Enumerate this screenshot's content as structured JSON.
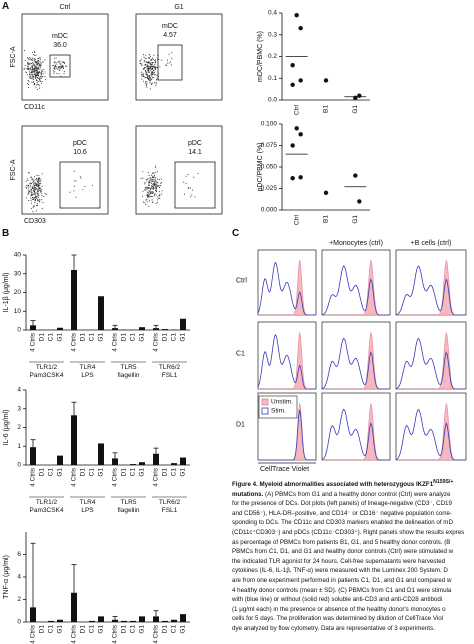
{
  "panel_labels": [
    "A",
    "B",
    "C"
  ],
  "flow": {
    "columns": [
      "Ctrl",
      "G1"
    ],
    "y_label": "FSC-A",
    "rows": [
      {
        "x_label": "CD11c",
        "cells": [
          {
            "population": "mDC",
            "percent": "36.0"
          },
          {
            "population": "mDC",
            "percent": "4.57"
          }
        ]
      },
      {
        "x_label": "CD303",
        "cells": [
          {
            "population": "pDC",
            "percent": "10.6"
          },
          {
            "population": "pDC",
            "percent": "14.1"
          }
        ]
      }
    ]
  },
  "chart_data": [
    {
      "type": "strip",
      "y_label": "mDC/PBMC (%)",
      "categories": [
        "Ctrl",
        "B1",
        "G1"
      ],
      "points": [
        [
          0.39,
          0.33,
          0.16,
          0.09,
          0.07
        ],
        [
          0.09
        ],
        [
          0.01,
          0.02
        ]
      ],
      "means": [
        0.2,
        null,
        0.015
      ],
      "ylim": [
        0,
        0.4
      ],
      "yticks": [
        {
          "value": 0,
          "label": "0.0"
        },
        0.1,
        0.2,
        0.3,
        0.4
      ]
    },
    {
      "type": "strip",
      "y_label": "pDC/PBMC (%)",
      "categories": [
        "Ctrl",
        "B1",
        "G1"
      ],
      "points": [
        [
          0.095,
          0.088,
          0.075,
          0.038,
          0.037
        ],
        [
          0.02
        ],
        [
          0.04,
          0.01
        ]
      ],
      "means": [
        0.065,
        null,
        0.027
      ],
      "ylim": [
        0,
        0.1
      ],
      "yticks": [
        {
          "value": 0,
          "label": "0.000"
        },
        0.025,
        {
          "value": 0.05,
          "label": "0.050"
        },
        0.075,
        {
          "value": 0.1,
          "label": "0.100"
        }
      ]
    },
    {
      "type": "bar",
      "y_label": "IL-1β (μg/ml)",
      "categories": [
        "4 Ctrls",
        "D1",
        "C1",
        "G1"
      ],
      "groups": [
        {
          "name": "TLR1/2",
          "agonist": "Pam3CSK4",
          "values": [
            2.5,
            0.1,
            0.1,
            1.2
          ],
          "error": 2.5
        },
        {
          "name": "TLR4",
          "agonist": "LPS",
          "values": [
            32,
            0,
            0,
            18
          ],
          "error": 8
        },
        {
          "name": "TLR5",
          "agonist": "flagellin",
          "values": [
            1,
            0.2,
            0.1,
            1.5
          ],
          "error": 1.5
        },
        {
          "name": "TLR6/2",
          "agonist": "FSL1",
          "values": [
            1,
            0.5,
            0.2,
            6
          ],
          "error": 1.5
        }
      ],
      "ylim": [
        0,
        40
      ],
      "yticks": [
        0,
        10,
        20,
        30,
        40
      ]
    },
    {
      "type": "bar",
      "y_label": "IL-6 (μg/ml)",
      "categories": [
        "4 Ctrls",
        "D1",
        "C1",
        "G1"
      ],
      "groups": [
        {
          "name": "TLR1/2",
          "agonist": "Pam3CSK4",
          "values": [
            0.95,
            0,
            0,
            0.5
          ],
          "error": 0.4
        },
        {
          "name": "TLR4",
          "agonist": "LPS",
          "values": [
            2.65,
            0,
            0,
            1.15
          ],
          "error": 0.7
        },
        {
          "name": "TLR5",
          "agonist": "flagellin",
          "values": [
            0.35,
            0,
            0.05,
            0.15
          ],
          "error": 0.3
        },
        {
          "name": "TLR6/2",
          "agonist": "FSL1",
          "values": [
            0.6,
            0,
            0.1,
            0.4
          ],
          "error": 0.3
        }
      ],
      "ylim": [
        0,
        4
      ],
      "yticks": [
        0,
        1,
        2,
        3,
        4
      ]
    },
    {
      "type": "bar",
      "y_label": "TNF-α (μg/ml)",
      "categories": [
        "4 Ctrls",
        "D1",
        "C1",
        "G1"
      ],
      "groups": [
        {
          "values": [
            1.3,
            0,
            0.1,
            0.2
          ],
          "error": 5.7
        },
        {
          "values": [
            2.6,
            0,
            0.1,
            0.5
          ],
          "error": 2.5
        },
        {
          "values": [
            0.2,
            0.1,
            0.1,
            0.5
          ],
          "error": 0.3
        },
        {
          "values": [
            0.5,
            0.1,
            0.2,
            0.7
          ],
          "error": 0.5
        }
      ],
      "ylim": [
        0,
        8
      ],
      "yticks": [
        0,
        2,
        4,
        6
      ]
    }
  ],
  "histograms": {
    "columns": [
      "+Monocytes (ctrl)",
      "+B cells (ctrl)"
    ],
    "rows": [
      "Ctrl",
      "C1",
      "D1"
    ],
    "legend": [
      "Unstim.",
      "Stim."
    ],
    "x_label": "CellTrace Violet"
  },
  "caption": {
    "title": "Figure 4. Myeloid abnormalities associated with heterozygous IKZF1",
    "superscript": "N159S/+",
    "title_end": "mutations.",
    "lines": [
      "(A) PBMCs from G1 and a healthy donor control (Ctrl) were analyze",
      "for the presence of DCs. Dot plots (left panels) of lineage-negative (CD3⁻, CD19",
      "and CD56⁻), HLA-DR–positive, and CD14⁻ or CD16⁻ negative population corre-",
      "sponding to DCs. The CD11c and CD303 markers enabled the delineation of mD",
      "(CD11c⁺CD303⁻) and pDCs (CD11c⁻CD303⁺). Right panels show the results expres",
      "as percentage of PBMCs from patients B1, G1, and 5 healthy donor controls. (B",
      "PBMCs from C1, D1, and G1 and healthy donor controls (Ctrl) were stimulated w",
      "the indicated TLR agonist for 24 hours. Cell-free supernatants were harvested",
      "cytokines (IL-6, IL-1β, TNF-α) were measured with the Luminex 200 System. D",
      "are from one experiment performed in patients C1, D1, and G1 and compared w",
      "4 healthy donor controls (mean ± SD). (C) PBMCs from C1 and D1 were stimula",
      "with (blue line) or without (solid red) soluble anti-CD3 and anti-CD28 antibodi",
      "(1 μg/ml each) in the presence or absence of the healthy donor's monocytes o",
      "cells for 5 days. The proliferation was determined by dilution of CellTrace Viol",
      "dye analyzed by flow cytometry. Data are representative of 3 experiments."
    ]
  }
}
